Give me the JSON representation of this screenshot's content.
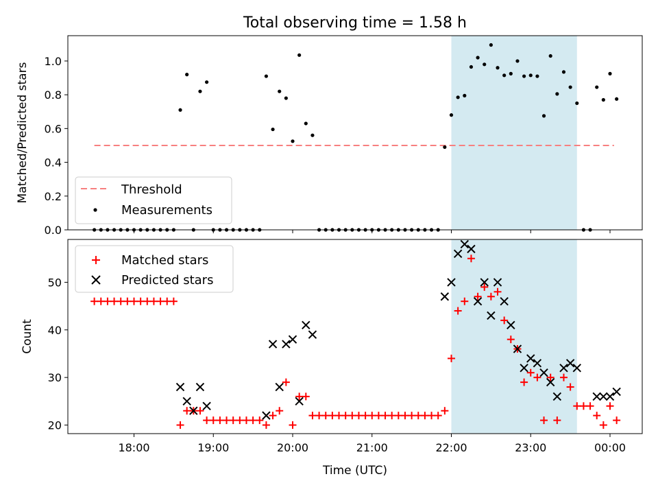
{
  "chart_data": [
    {
      "type": "scatter",
      "title": "Total observing time = 1.58 h",
      "ylabel": "Matched/Predicted stars",
      "ylim": [
        0,
        1.15
      ],
      "yticks": [
        "0.0",
        "0.2",
        "0.4",
        "0.6",
        "0.8",
        "1.0"
      ],
      "x_tick_labels_shown": false,
      "grid": false,
      "legend_position": "lower-left",
      "observing_window": {
        "start": "22:00",
        "end": "23:35",
        "color": "#d4eaf1"
      },
      "threshold": {
        "name": "Threshold",
        "value": 0.5,
        "x_start": "17:30",
        "x_end": "00:03",
        "color": "#f77f7f",
        "style": "dashed"
      },
      "series": [
        {
          "name": "Measurements",
          "color": "#000000",
          "marker": "dot",
          "points": [
            [
              "17:30",
              0
            ],
            [
              "17:35",
              0
            ],
            [
              "17:40",
              0
            ],
            [
              "17:45",
              0
            ],
            [
              "17:50",
              0
            ],
            [
              "17:55",
              0
            ],
            [
              "18:00",
              0
            ],
            [
              "18:05",
              0
            ],
            [
              "18:10",
              0
            ],
            [
              "18:15",
              0
            ],
            [
              "18:20",
              0
            ],
            [
              "18:25",
              0
            ],
            [
              "18:30",
              0
            ],
            [
              "18:35",
              0.71
            ],
            [
              "18:40",
              0.92
            ],
            [
              "18:45",
              0
            ],
            [
              "18:50",
              0.82
            ],
            [
              "18:55",
              0.875
            ],
            [
              "19:00",
              0
            ],
            [
              "19:05",
              0
            ],
            [
              "19:10",
              0
            ],
            [
              "19:15",
              0
            ],
            [
              "19:20",
              0
            ],
            [
              "19:25",
              0
            ],
            [
              "19:30",
              0
            ],
            [
              "19:35",
              0
            ],
            [
              "19:40",
              0.91
            ],
            [
              "19:45",
              0.595
            ],
            [
              "19:50",
              0.82
            ],
            [
              "19:55",
              0.78
            ],
            [
              "20:00",
              0.525
            ],
            [
              "20:05",
              1.035
            ],
            [
              "20:10",
              0.63
            ],
            [
              "20:15",
              0.56
            ],
            [
              "20:20",
              0
            ],
            [
              "20:25",
              0
            ],
            [
              "20:30",
              0
            ],
            [
              "20:35",
              0
            ],
            [
              "20:40",
              0
            ],
            [
              "20:45",
              0
            ],
            [
              "20:50",
              0
            ],
            [
              "20:55",
              0
            ],
            [
              "21:00",
              0
            ],
            [
              "21:05",
              0
            ],
            [
              "21:10",
              0
            ],
            [
              "21:15",
              0
            ],
            [
              "21:20",
              0
            ],
            [
              "21:25",
              0
            ],
            [
              "21:30",
              0
            ],
            [
              "21:35",
              0
            ],
            [
              "21:40",
              0
            ],
            [
              "21:45",
              0
            ],
            [
              "21:50",
              0
            ],
            [
              "21:55",
              0.49
            ],
            [
              "22:00",
              0.68
            ],
            [
              "22:05",
              0.785
            ],
            [
              "22:10",
              0.795
            ],
            [
              "22:15",
              0.965
            ],
            [
              "22:20",
              1.02
            ],
            [
              "22:25",
              0.98
            ],
            [
              "22:30",
              1.095
            ],
            [
              "22:35",
              0.96
            ],
            [
              "22:40",
              0.915
            ],
            [
              "22:45",
              0.925
            ],
            [
              "22:50",
              1.0
            ],
            [
              "22:55",
              0.91
            ],
            [
              "23:00",
              0.915
            ],
            [
              "23:05",
              0.91
            ],
            [
              "23:10",
              0.675
            ],
            [
              "23:15",
              1.03
            ],
            [
              "23:20",
              0.805
            ],
            [
              "23:25",
              0.935
            ],
            [
              "23:30",
              0.845
            ],
            [
              "23:35",
              0.75
            ],
            [
              "23:40",
              0
            ],
            [
              "23:45",
              0
            ],
            [
              "23:50",
              0.845
            ],
            [
              "23:55",
              0.77
            ],
            [
              "00:00",
              0.925
            ],
            [
              "00:05",
              0.775
            ]
          ]
        }
      ]
    },
    {
      "type": "scatter",
      "xlabel": "Time (UTC)",
      "ylabel": "Count",
      "ylim": [
        18.2,
        59
      ],
      "yticks": [
        "20",
        "30",
        "40",
        "50"
      ],
      "xticks": [
        "18:00",
        "19:00",
        "20:00",
        "21:00",
        "22:00",
        "23:00",
        "00:00"
      ],
      "grid": false,
      "legend_position": "upper-left",
      "observing_window": {
        "start": "22:00",
        "end": "23:35",
        "color": "#d4eaf1"
      },
      "series": [
        {
          "name": "Matched stars",
          "color": "#ff0000",
          "marker": "plus",
          "points": [
            [
              "17:30",
              46
            ],
            [
              "17:35",
              46
            ],
            [
              "17:40",
              46
            ],
            [
              "17:45",
              46
            ],
            [
              "17:50",
              46
            ],
            [
              "17:55",
              46
            ],
            [
              "18:00",
              46
            ],
            [
              "18:05",
              46
            ],
            [
              "18:10",
              46
            ],
            [
              "18:15",
              46
            ],
            [
              "18:20",
              46
            ],
            [
              "18:25",
              46
            ],
            [
              "18:30",
              46
            ],
            [
              "18:35",
              20
            ],
            [
              "18:40",
              23
            ],
            [
              "18:45",
              23
            ],
            [
              "18:50",
              23
            ],
            [
              "18:55",
              21
            ],
            [
              "19:00",
              21
            ],
            [
              "19:05",
              21
            ],
            [
              "19:10",
              21
            ],
            [
              "19:15",
              21
            ],
            [
              "19:20",
              21
            ],
            [
              "19:25",
              21
            ],
            [
              "19:30",
              21
            ],
            [
              "19:35",
              21
            ],
            [
              "19:40",
              20
            ],
            [
              "19:45",
              22
            ],
            [
              "19:50",
              23
            ],
            [
              "19:55",
              29
            ],
            [
              "20:00",
              20
            ],
            [
              "20:05",
              26
            ],
            [
              "20:10",
              26
            ],
            [
              "20:15",
              22
            ],
            [
              "20:20",
              22
            ],
            [
              "20:25",
              22
            ],
            [
              "20:30",
              22
            ],
            [
              "20:35",
              22
            ],
            [
              "20:40",
              22
            ],
            [
              "20:45",
              22
            ],
            [
              "20:50",
              22
            ],
            [
              "20:55",
              22
            ],
            [
              "21:00",
              22
            ],
            [
              "21:05",
              22
            ],
            [
              "21:10",
              22
            ],
            [
              "21:15",
              22
            ],
            [
              "21:20",
              22
            ],
            [
              "21:25",
              22
            ],
            [
              "21:30",
              22
            ],
            [
              "21:35",
              22
            ],
            [
              "21:40",
              22
            ],
            [
              "21:45",
              22
            ],
            [
              "21:50",
              22
            ],
            [
              "21:55",
              23
            ],
            [
              "22:00",
              34
            ],
            [
              "22:05",
              44
            ],
            [
              "22:10",
              46
            ],
            [
              "22:15",
              55
            ],
            [
              "22:20",
              47
            ],
            [
              "22:25",
              49
            ],
            [
              "22:30",
              47
            ],
            [
              "22:35",
              48
            ],
            [
              "22:40",
              42
            ],
            [
              "22:45",
              38
            ],
            [
              "22:50",
              36
            ],
            [
              "22:55",
              29
            ],
            [
              "23:00",
              31
            ],
            [
              "23:05",
              30
            ],
            [
              "23:10",
              21
            ],
            [
              "23:15",
              30
            ],
            [
              "23:20",
              21
            ],
            [
              "23:25",
              30
            ],
            [
              "23:30",
              28
            ],
            [
              "23:35",
              24
            ],
            [
              "23:40",
              24
            ],
            [
              "23:45",
              24
            ],
            [
              "23:50",
              22
            ],
            [
              "23:55",
              20
            ],
            [
              "00:00",
              24
            ],
            [
              "00:05",
              21
            ]
          ]
        },
        {
          "name": "Predicted stars",
          "color": "#000000",
          "marker": "x",
          "points": [
            [
              "18:35",
              28
            ],
            [
              "18:40",
              25
            ],
            [
              "18:45",
              23
            ],
            [
              "18:50",
              28
            ],
            [
              "18:55",
              24
            ],
            [
              "19:40",
              22
            ],
            [
              "19:45",
              37
            ],
            [
              "19:50",
              28
            ],
            [
              "19:55",
              37
            ],
            [
              "20:00",
              38
            ],
            [
              "20:05",
              25
            ],
            [
              "20:10",
              41
            ],
            [
              "20:15",
              39
            ],
            [
              "21:55",
              47
            ],
            [
              "22:00",
              50
            ],
            [
              "22:05",
              56
            ],
            [
              "22:10",
              58
            ],
            [
              "22:15",
              57
            ],
            [
              "22:20",
              46
            ],
            [
              "22:25",
              50
            ],
            [
              "22:30",
              43
            ],
            [
              "22:35",
              50
            ],
            [
              "22:40",
              46
            ],
            [
              "22:45",
              41
            ],
            [
              "22:50",
              36
            ],
            [
              "22:55",
              32
            ],
            [
              "23:00",
              34
            ],
            [
              "23:05",
              33
            ],
            [
              "23:10",
              31
            ],
            [
              "23:15",
              29
            ],
            [
              "23:20",
              26
            ],
            [
              "23:25",
              32
            ],
            [
              "23:30",
              33
            ],
            [
              "23:35",
              32
            ],
            [
              "23:50",
              26
            ],
            [
              "23:55",
              26
            ],
            [
              "00:00",
              26
            ],
            [
              "00:05",
              27
            ]
          ]
        }
      ]
    }
  ]
}
